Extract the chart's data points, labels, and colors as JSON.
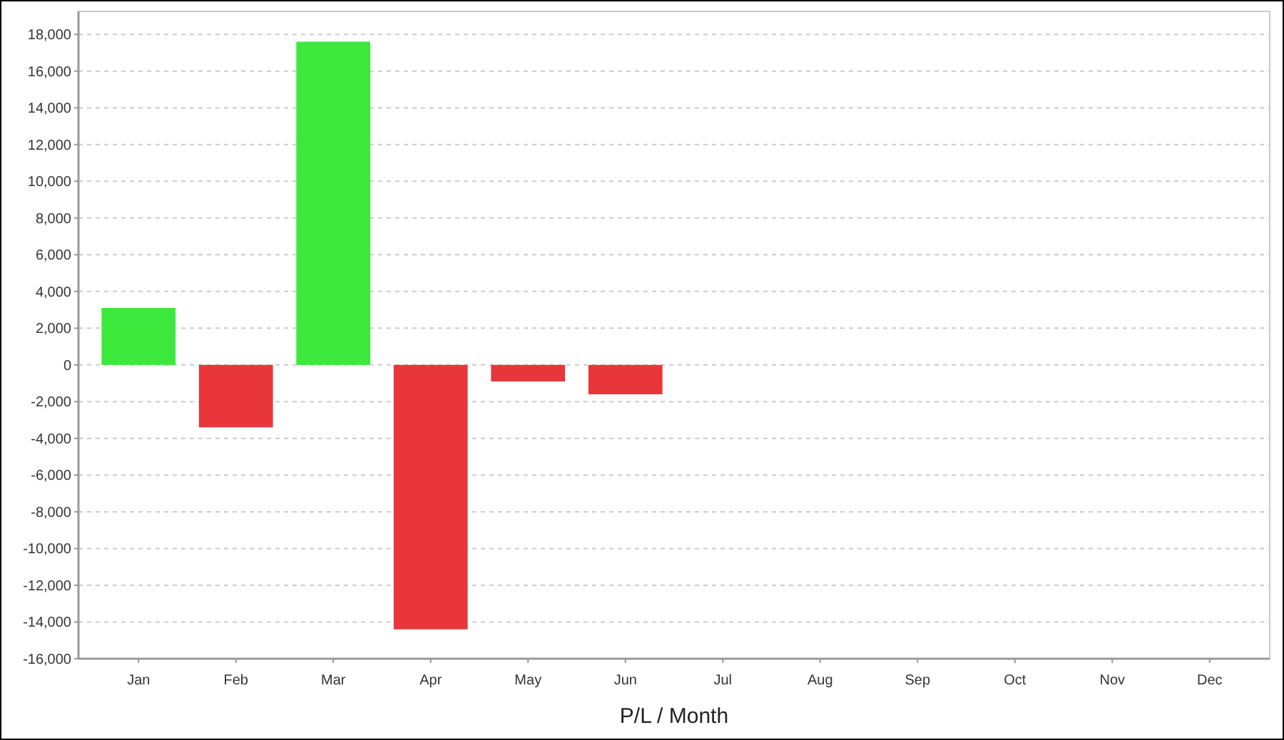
{
  "chart_data": {
    "type": "bar",
    "xlabel": "P/L / Month",
    "categories": [
      "Jan",
      "Feb",
      "Mar",
      "Apr",
      "May",
      "Jun",
      "Jul",
      "Aug",
      "Sep",
      "Oct",
      "Nov",
      "Dec"
    ],
    "values": [
      3100,
      -3400,
      17600,
      -14400,
      -900,
      -1600,
      null,
      null,
      null,
      null,
      null,
      null
    ],
    "colors": [
      "#3de83d",
      "#e8363a",
      "#3de83d",
      "#e8363a",
      "#e8363a",
      "#e8363a",
      null,
      null,
      null,
      null,
      null,
      null
    ],
    "ylim": [
      -16000,
      19250
    ],
    "yticks": [
      {
        "value": -16000,
        "label": "-16,000"
      },
      {
        "value": -14000,
        "label": "-14,000"
      },
      {
        "value": -12000,
        "label": "-12,000"
      },
      {
        "value": -10000,
        "label": "-10,000"
      },
      {
        "value": -8000,
        "label": "-8,000"
      },
      {
        "value": -6000,
        "label": "-6,000"
      },
      {
        "value": -4000,
        "label": "-4,000"
      },
      {
        "value": -2000,
        "label": "-2,000"
      },
      0,
      {
        "value": 2000,
        "label": "2,000"
      },
      {
        "value": 4000,
        "label": "4,000"
      },
      {
        "value": 6000,
        "label": "6,000"
      },
      {
        "value": 8000,
        "label": "8,000"
      },
      {
        "value": 10000,
        "label": "10,000"
      },
      {
        "value": 12000,
        "label": "12,000"
      },
      {
        "value": 14000,
        "label": "14,000"
      },
      {
        "value": 16000,
        "label": "16,000"
      },
      {
        "value": 18000,
        "label": "18,000"
      }
    ],
    "grid": "y"
  }
}
